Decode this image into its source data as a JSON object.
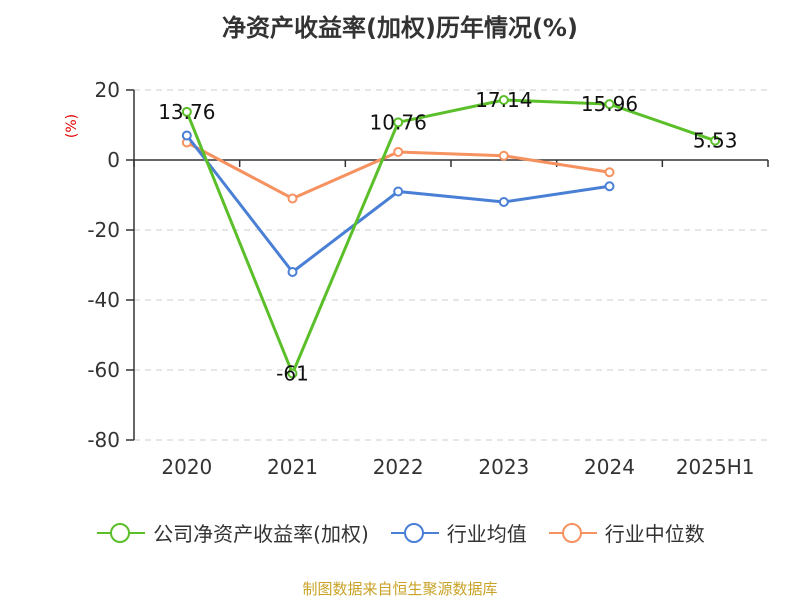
{
  "title": "净资产收益率(加权)历年情况(%)",
  "source": "制图数据来自恒生聚源数据库",
  "chart_data": {
    "type": "line",
    "title": "净资产收益率(加权)历年情况(%)",
    "ylabel": "(%)",
    "xlabel": "",
    "categories": [
      "2020",
      "2021",
      "2022",
      "2023",
      "2024",
      "2025H1"
    ],
    "ylim": [
      -80,
      20
    ],
    "yticks": [
      20,
      0,
      -20,
      -40,
      -60,
      -80
    ],
    "grid": true,
    "legend_position": "bottom",
    "series": [
      {
        "name": "公司净资产收益率(加权)",
        "color": "#5bbf2a",
        "values": [
          13.76,
          -61,
          10.76,
          17.14,
          15.96,
          5.53
        ],
        "labels": [
          "13.76",
          "-61",
          "10.76",
          "17.14",
          "15.96",
          "5.53"
        ]
      },
      {
        "name": "行业均值",
        "color": "#4a7fd6",
        "values": [
          7,
          -32,
          -9,
          -12,
          -7.5,
          null
        ]
      },
      {
        "name": "行业中位数",
        "color": "#f59260",
        "values": [
          5,
          -11,
          2.3,
          1.2,
          -3.5,
          null
        ]
      }
    ]
  }
}
